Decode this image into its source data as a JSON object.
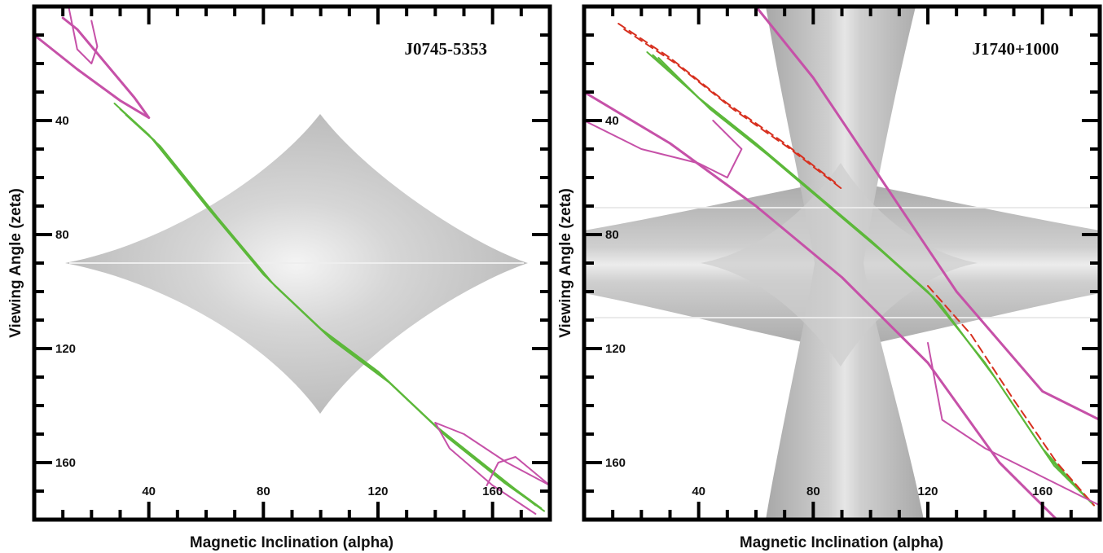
{
  "chart_data": [
    {
      "type": "line",
      "title": "J0745-5353",
      "xlabel": "Magnetic Inclination (alpha)",
      "ylabel": "Viewing Angle (zeta)",
      "xlim": [
        0,
        180
      ],
      "ylim": [
        180,
        0
      ],
      "x_ticks": [
        40,
        80,
        120,
        160
      ],
      "y_ticks": [
        40,
        80,
        120,
        160
      ],
      "background": "grey diamond-shaped beam-visibility region",
      "series": [
        {
          "color": "#5cb83a",
          "style": "solid",
          "curves": [
            [
              [
                28,
                34
              ],
              [
                40,
                45
              ],
              [
                60,
                70
              ],
              [
                80,
                94
              ],
              [
                100,
                113
              ],
              [
                120,
                128
              ],
              [
                140,
                147
              ],
              [
                160,
                163
              ],
              [
                175,
                175
              ]
            ],
            [
              [
                30,
                36
              ],
              [
                42,
                47
              ],
              [
                62,
                72
              ],
              [
                82,
                96
              ],
              [
                102,
                115
              ],
              [
                122,
                130
              ],
              [
                142,
                149
              ],
              [
                162,
                165
              ],
              [
                177,
                176
              ]
            ],
            [
              [
                32,
                38
              ],
              [
                44,
                49
              ],
              [
                64,
                74
              ],
              [
                84,
                98
              ],
              [
                104,
                117
              ],
              [
                124,
                132
              ],
              [
                144,
                151
              ],
              [
                164,
                167
              ],
              [
                178,
                177
              ]
            ]
          ]
        },
        {
          "color": "#c651a8",
          "style": "solid",
          "curves": [
            [
              [
                0,
                10
              ],
              [
                15,
                22
              ],
              [
                30,
                33
              ],
              [
                40,
                39
              ]
            ],
            [
              [
                40,
                39
              ],
              [
                35,
                32
              ],
              [
                25,
                20
              ],
              [
                15,
                8
              ],
              [
                10,
                4
              ]
            ],
            [
              [
                20,
                5
              ],
              [
                22,
                14
              ],
              [
                20,
                20
              ],
              [
                15,
                15
              ],
              [
                12,
                0
              ]
            ],
            [
              [
                140,
                146
              ],
              [
                150,
                150
              ],
              [
                165,
                160
              ],
              [
                180,
                168
              ]
            ],
            [
              [
                140,
                146
              ],
              [
                145,
                155
              ],
              [
                160,
                168
              ],
              [
                175,
                178
              ]
            ],
            [
              [
                158,
                168
              ],
              [
                162,
                160
              ],
              [
                168,
                158
              ],
              [
                180,
                168
              ]
            ]
          ]
        }
      ]
    },
    {
      "type": "line",
      "title": "J1740+1000",
      "xlabel": "Magnetic Inclination (alpha)",
      "ylabel": "Viewing Angle (zeta)",
      "xlim": [
        0,
        180
      ],
      "ylim": [
        180,
        0
      ],
      "x_ticks": [
        40,
        80,
        120,
        160
      ],
      "y_ticks": [
        40,
        80,
        120,
        160
      ],
      "background": "grey X-shaped beam-visibility region",
      "series": [
        {
          "color": "#5cb83a",
          "style": "solid",
          "curves": [
            [
              [
                22,
                16
              ],
              [
                40,
                32
              ],
              [
                60,
                48
              ],
              [
                80,
                65
              ],
              [
                100,
                82
              ],
              [
                120,
                100
              ],
              [
                140,
                125
              ],
              [
                160,
                155
              ],
              [
                175,
                172
              ]
            ],
            [
              [
                24,
                17
              ],
              [
                42,
                34
              ],
              [
                62,
                50
              ],
              [
                82,
                67
              ],
              [
                102,
                84
              ],
              [
                122,
                102
              ],
              [
                142,
                128
              ],
              [
                162,
                158
              ],
              [
                177,
                174
              ]
            ],
            [
              [
                26,
                18
              ],
              [
                44,
                36
              ],
              [
                64,
                52
              ],
              [
                84,
                69
              ],
              [
                104,
                86
              ],
              [
                124,
                104
              ],
              [
                144,
                131
              ],
              [
                164,
                161
              ],
              [
                178,
                175
              ]
            ]
          ]
        },
        {
          "color": "#d7301f",
          "style": "dashed",
          "curves": [
            [
              [
                12,
                6
              ],
              [
                30,
                18
              ],
              [
                50,
                34
              ],
              [
                70,
                48
              ],
              [
                88,
                62
              ]
            ],
            [
              [
                14,
                8
              ],
              [
                32,
                20
              ],
              [
                52,
                36
              ],
              [
                72,
                50
              ],
              [
                90,
                64
              ]
            ],
            [
              [
                120,
                98
              ],
              [
                135,
                115
              ],
              [
                150,
                138
              ],
              [
                165,
                160
              ],
              [
                178,
                175
              ]
            ]
          ]
        },
        {
          "color": "#c651a8",
          "style": "solid",
          "curves": [
            [
              [
                60,
                0
              ],
              [
                80,
                25
              ],
              [
                100,
                55
              ],
              [
                130,
                100
              ],
              [
                160,
                135
              ],
              [
                180,
                145
              ]
            ],
            [
              [
                0,
                30
              ],
              [
                30,
                48
              ],
              [
                60,
                70
              ],
              [
                90,
                95
              ],
              [
                120,
                125
              ],
              [
                145,
                160
              ],
              [
                165,
                180
              ]
            ],
            [
              [
                0,
                40
              ],
              [
                20,
                50
              ],
              [
                40,
                55
              ],
              [
                50,
                60
              ],
              [
                55,
                50
              ],
              [
                45,
                40
              ]
            ],
            [
              [
                120,
                118
              ],
              [
                125,
                145
              ],
              [
                140,
                155
              ],
              [
                160,
                165
              ],
              [
                180,
                175
              ]
            ]
          ]
        }
      ]
    }
  ]
}
